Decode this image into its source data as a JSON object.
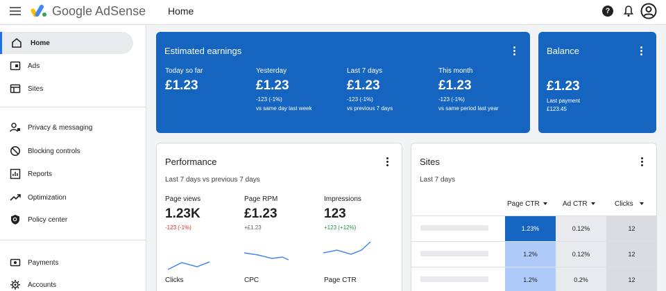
{
  "header": {
    "logo_text": "Google AdSense",
    "page_title": "Home",
    "help_glyph": "?",
    "icons": [
      "menu-icon",
      "help-icon",
      "notifications-icon",
      "account-icon"
    ]
  },
  "sidebar": {
    "items": [
      {
        "label": "Home",
        "icon": "home-icon",
        "active": true
      },
      {
        "label": "Ads",
        "icon": "ads-icon"
      },
      {
        "label": "Sites",
        "icon": "sites-icon"
      },
      {
        "label": "Privacy & messaging",
        "icon": "privacy-icon"
      },
      {
        "label": "Blocking controls",
        "icon": "block-icon"
      },
      {
        "label": "Reports",
        "icon": "reports-icon"
      },
      {
        "label": "Optimization",
        "icon": "optimization-icon"
      },
      {
        "label": "Policy center",
        "icon": "policy-icon"
      },
      {
        "label": "Payments",
        "icon": "payments-icon"
      },
      {
        "label": "Accounts",
        "icon": "accounts-icon"
      }
    ]
  },
  "earnings": {
    "title": "Estimated earnings",
    "columns": [
      {
        "label": "Today so far",
        "value": "£1.23",
        "change": "",
        "compare": ""
      },
      {
        "label": "Yesterday",
        "value": "£1.23",
        "change": "-123 (-1%)",
        "compare": "vs same day last week"
      },
      {
        "label": "Last 7 days",
        "value": "£1.23",
        "change": "-123 (-1%)",
        "compare": "vs previous 7 days"
      },
      {
        "label": "This month",
        "value": "£1.23",
        "change": "-123 (-1%)",
        "compare": "vs same period last year"
      }
    ]
  },
  "balance": {
    "title": "Balance",
    "value": "£1.23",
    "last_payment_label": "Last payment",
    "last_payment_amount": "£123.45"
  },
  "performance": {
    "title": "Performance",
    "subtitle": "Last 7 days vs previous 7 days",
    "metrics": [
      {
        "label": "Page views",
        "value": "1.23K",
        "change": "-123 (-1%)",
        "trend": "negative"
      },
      {
        "label": "Page RPM",
        "value": "£1.23",
        "change": "+£1.23",
        "trend": "neutral"
      },
      {
        "label": "Impressions",
        "value": "123",
        "change": "+123 (+12%)",
        "trend": "positive"
      }
    ],
    "next_metrics": [
      "Clicks",
      "CPC",
      "Page CTR"
    ]
  },
  "sites": {
    "title": "Sites",
    "subtitle": "Last 7 days",
    "columns": [
      "Page CTR",
      "Ad CTR",
      "Clicks"
    ],
    "rows": [
      {
        "page_ctr": "1.23%",
        "ad_ctr": "0.12%",
        "clicks": "12"
      },
      {
        "page_ctr": "1.2%",
        "ad_ctr": "0.12%",
        "clicks": "12"
      },
      {
        "page_ctr": "1.2%",
        "ad_ctr": "0.2%",
        "clicks": "12"
      }
    ],
    "colors": {
      "page_ctr_top": "#1565c0",
      "page_ctr_other": "#aecbfa",
      "ad_ctr": "#e8eaed",
      "clicks": "#dadce0"
    }
  },
  "colors": {
    "accent": "#1565c0",
    "negative": "#d93025",
    "positive": "#1e8e3e"
  }
}
